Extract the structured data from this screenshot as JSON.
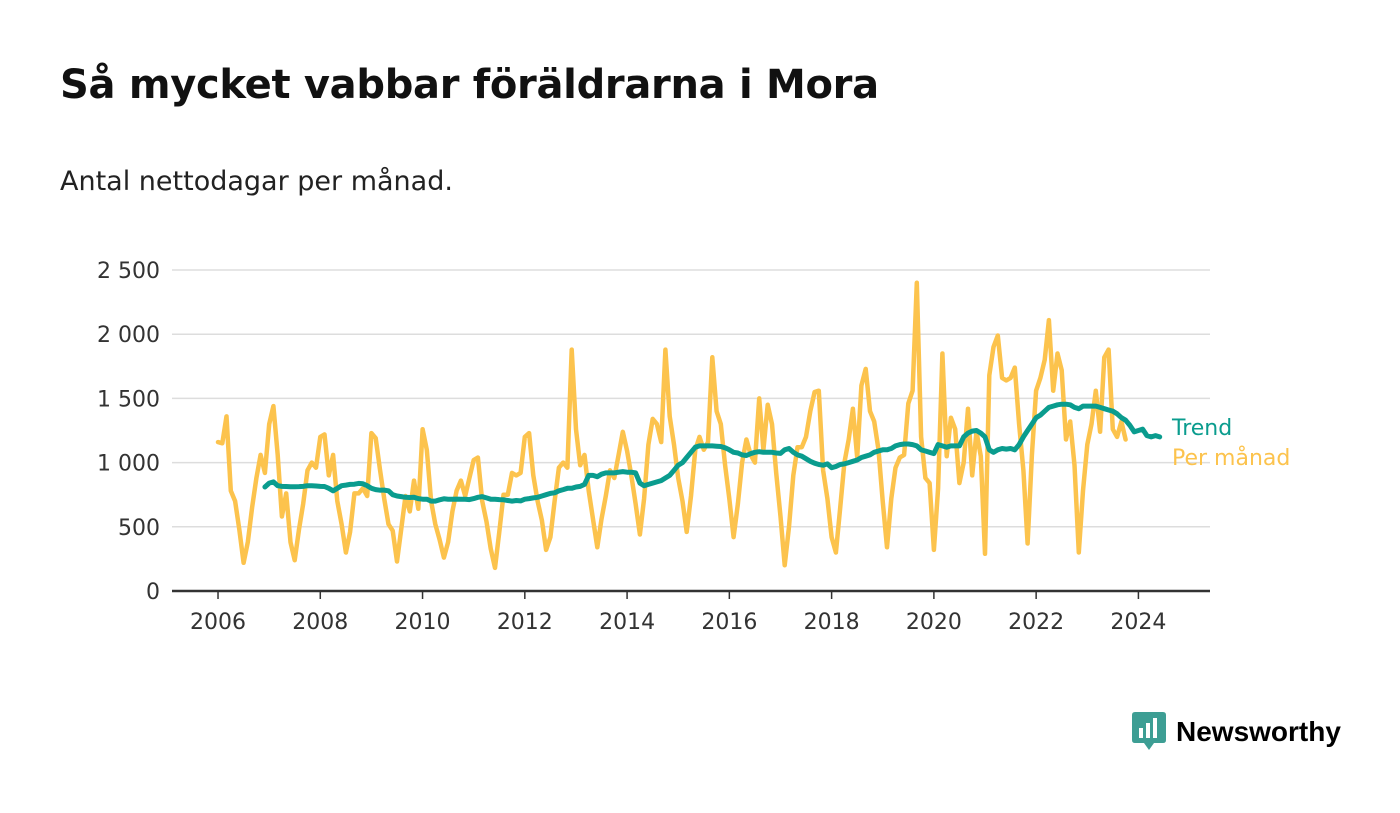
{
  "title": "Så mycket vabbar föräldrarna i Mora",
  "subtitle": "Antal nettodagar per månad.",
  "logo": {
    "text": "Newsworthy",
    "icon": "newsworthy-chart-icon",
    "color": "#3d9e94"
  },
  "colors": {
    "trend": "#0a9c8e",
    "monthly": "#fcc34d",
    "grid": "#dddddd",
    "axis": "#333333"
  },
  "chart_data": {
    "type": "line",
    "title": "",
    "xlabel": "",
    "ylabel": "",
    "xlim": [
      2005.1,
      2025.4
    ],
    "ylim": [
      0,
      2500
    ],
    "yticks": [
      0,
      500,
      1000,
      1500,
      2000,
      2500
    ],
    "ytick_labels": [
      "0",
      "500",
      "1 000",
      "1 500",
      "2 000",
      "2 500"
    ],
    "xticks": [
      2006,
      2008,
      2010,
      2012,
      2014,
      2016,
      2018,
      2020,
      2022,
      2024
    ],
    "xtick_labels": [
      "2006",
      "2008",
      "2010",
      "2012",
      "2014",
      "2016",
      "2018",
      "2020",
      "2022",
      "2024"
    ],
    "grid": true,
    "legend": "direct labels at right end of lines",
    "series": [
      {
        "name": "Per månad",
        "color": "#fcc34d",
        "start": "2006-01",
        "values": [
          1160,
          1150,
          1360,
          780,
          700,
          480,
          220,
          380,
          650,
          880,
          1060,
          920,
          1300,
          1440,
          1060,
          580,
          760,
          380,
          240,
          480,
          680,
          940,
          1000,
          960,
          1200,
          1220,
          900,
          1060,
          700,
          520,
          300,
          460,
          760,
          760,
          800,
          740,
          1230,
          1190,
          950,
          720,
          520,
          470,
          230,
          480,
          740,
          620,
          860,
          640,
          1260,
          1100,
          700,
          520,
          400,
          260,
          380,
          620,
          780,
          860,
          740,
          880,
          1020,
          1040,
          700,
          540,
          330,
          180,
          460,
          750,
          750,
          920,
          900,
          920,
          1200,
          1230,
          900,
          700,
          550,
          320,
          420,
          700,
          960,
          1000,
          960,
          1880,
          1260,
          980,
          1060,
          780,
          560,
          340,
          560,
          740,
          940,
          880,
          1060,
          1240,
          1090,
          900,
          680,
          440,
          720,
          1140,
          1340,
          1300,
          1160,
          1880,
          1360,
          1140,
          880,
          700,
          460,
          740,
          1100,
          1200,
          1100,
          1160,
          1820,
          1400,
          1300,
          980,
          720,
          420,
          680,
          1000,
          1180,
          1060,
          1000,
          1500,
          1100,
          1450,
          1300,
          920,
          580,
          200,
          500,
          900,
          1120,
          1120,
          1200,
          1400,
          1550,
          1560,
          940,
          720,
          420,
          300,
          640,
          1000,
          1180,
          1420,
          1040,
          1600,
          1730,
          1400,
          1320,
          1100,
          700,
          340,
          720,
          960,
          1040,
          1060,
          1460,
          1560,
          2400,
          1200,
          880,
          840,
          320,
          800,
          1850,
          1050,
          1350,
          1260,
          840,
          1000,
          1420,
          900,
          1240,
          1050,
          290,
          1680,
          1900,
          1990,
          1660,
          1640,
          1660,
          1740,
          1300,
          940,
          370,
          1060,
          1560,
          1660,
          1800,
          2110,
          1560,
          1850,
          1720,
          1180,
          1320,
          980,
          300,
          780,
          1140,
          1300,
          1560,
          1240,
          1820,
          1880,
          1260,
          1200,
          1320,
          1180
        ]
      },
      {
        "name": "Trend",
        "color": "#0a9c8e",
        "start": "2006-12",
        "values": [
          810,
          840,
          850,
          820,
          815,
          814,
          812,
          812,
          813,
          815,
          820,
          820,
          818,
          815,
          814,
          800,
          780,
          800,
          820,
          825,
          830,
          832,
          838,
          835,
          820,
          800,
          790,
          785,
          786,
          780,
          750,
          740,
          735,
          730,
          728,
          730,
          720,
          715,
          715,
          700,
          700,
          710,
          718,
          715,
          714,
          716,
          715,
          715,
          712,
          720,
          730,
          735,
          725,
          715,
          715,
          712,
          710,
          705,
          700,
          705,
          702,
          715,
          720,
          725,
          730,
          740,
          750,
          760,
          765,
          780,
          790,
          800,
          800,
          810,
          815,
          830,
          900,
          900,
          890,
          910,
          920,
          920,
          920,
          925,
          930,
          925,
          925,
          920,
          840,
          820,
          830,
          840,
          850,
          860,
          880,
          900,
          940,
          980,
          1000,
          1040,
          1080,
          1120,
          1130,
          1130,
          1130,
          1130,
          1128,
          1125,
          1115,
          1100,
          1080,
          1075,
          1060,
          1055,
          1070,
          1080,
          1085,
          1080,
          1080,
          1080,
          1075,
          1072,
          1100,
          1110,
          1080,
          1060,
          1050,
          1030,
          1010,
          995,
          985,
          980,
          990,
          960,
          970,
          985,
          990,
          1000,
          1010,
          1020,
          1040,
          1050,
          1060,
          1080,
          1090,
          1100,
          1100,
          1110,
          1130,
          1140,
          1145,
          1145,
          1140,
          1130,
          1100,
          1090,
          1080,
          1070,
          1140,
          1130,
          1120,
          1130,
          1130,
          1130,
          1200,
          1230,
          1245,
          1250,
          1230,
          1200,
          1100,
          1080,
          1100,
          1110,
          1105,
          1110,
          1100,
          1140,
          1200,
          1250,
          1300,
          1350,
          1370,
          1400,
          1430,
          1440,
          1450,
          1455,
          1455,
          1450,
          1430,
          1420,
          1440,
          1440,
          1440,
          1440,
          1430,
          1420,
          1410,
          1400,
          1380,
          1350,
          1330,
          1290,
          1240,
          1250,
          1260,
          1210,
          1200,
          1210,
          1200
        ]
      }
    ]
  }
}
